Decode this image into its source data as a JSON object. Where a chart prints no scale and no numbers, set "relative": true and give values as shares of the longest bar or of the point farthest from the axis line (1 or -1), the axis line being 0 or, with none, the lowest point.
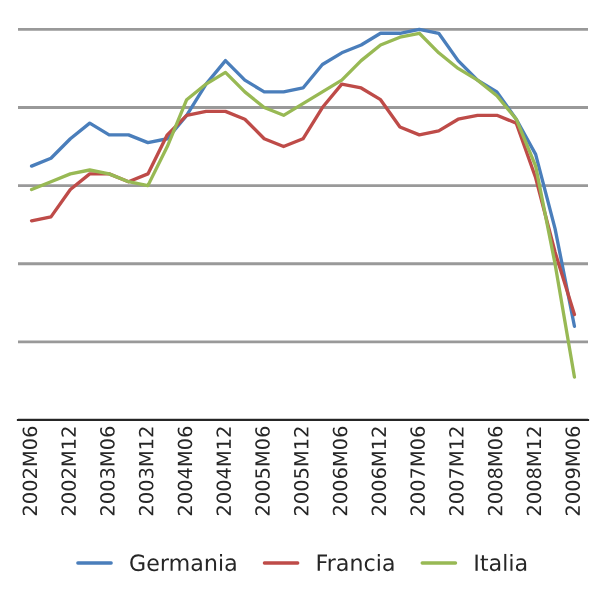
{
  "chart_data": {
    "type": "line",
    "relative": true,
    "grid": "y",
    "legend": "bottom",
    "categories": [
      "2002M06",
      null,
      "2002M12",
      null,
      "2003M06",
      null,
      "2003M12",
      null,
      "2004M06",
      null,
      "2004M12",
      null,
      "2005M06",
      null,
      "2005M12",
      null,
      "2006M06",
      null,
      "2006M12",
      null,
      "2007M06",
      null,
      "2007M12",
      null,
      "2008M06",
      null,
      "2008M12",
      null,
      "2009M06"
    ],
    "series": [
      {
        "name": "Germania",
        "color": "#4a7ebb",
        "values": [
          0.65,
          0.67,
          0.72,
          0.76,
          0.73,
          0.73,
          0.71,
          0.72,
          0.78,
          0.86,
          0.92,
          0.87,
          0.84,
          0.84,
          0.85,
          0.91,
          0.94,
          0.96,
          0.99,
          0.99,
          1,
          0.99,
          0.92,
          0.87,
          0.84,
          0.77,
          0.68,
          0.49,
          0.24
        ]
      },
      {
        "name": "Francia",
        "color": "#be4b48",
        "values": [
          0.51,
          0.52,
          0.59,
          0.63,
          0.63,
          0.61,
          0.63,
          0.73,
          0.78,
          0.79,
          0.79,
          0.77,
          0.72,
          0.7,
          0.72,
          0.8,
          0.86,
          0.85,
          0.82,
          0.75,
          0.73,
          0.74,
          0.77,
          0.78,
          0.78,
          0.76,
          0.62,
          0.43,
          0.27
        ]
      },
      {
        "name": "Italia",
        "color": "#98b954",
        "values": [
          0.59,
          0.61,
          0.63,
          0.64,
          0.63,
          0.61,
          0.6,
          0.7,
          0.82,
          0.86,
          0.89,
          0.84,
          0.8,
          0.78,
          0.81,
          0.84,
          0.87,
          0.92,
          0.96,
          0.98,
          0.99,
          0.94,
          0.9,
          0.87,
          0.83,
          0.77,
          0.65,
          0.4,
          0.11
        ]
      }
    ]
  }
}
